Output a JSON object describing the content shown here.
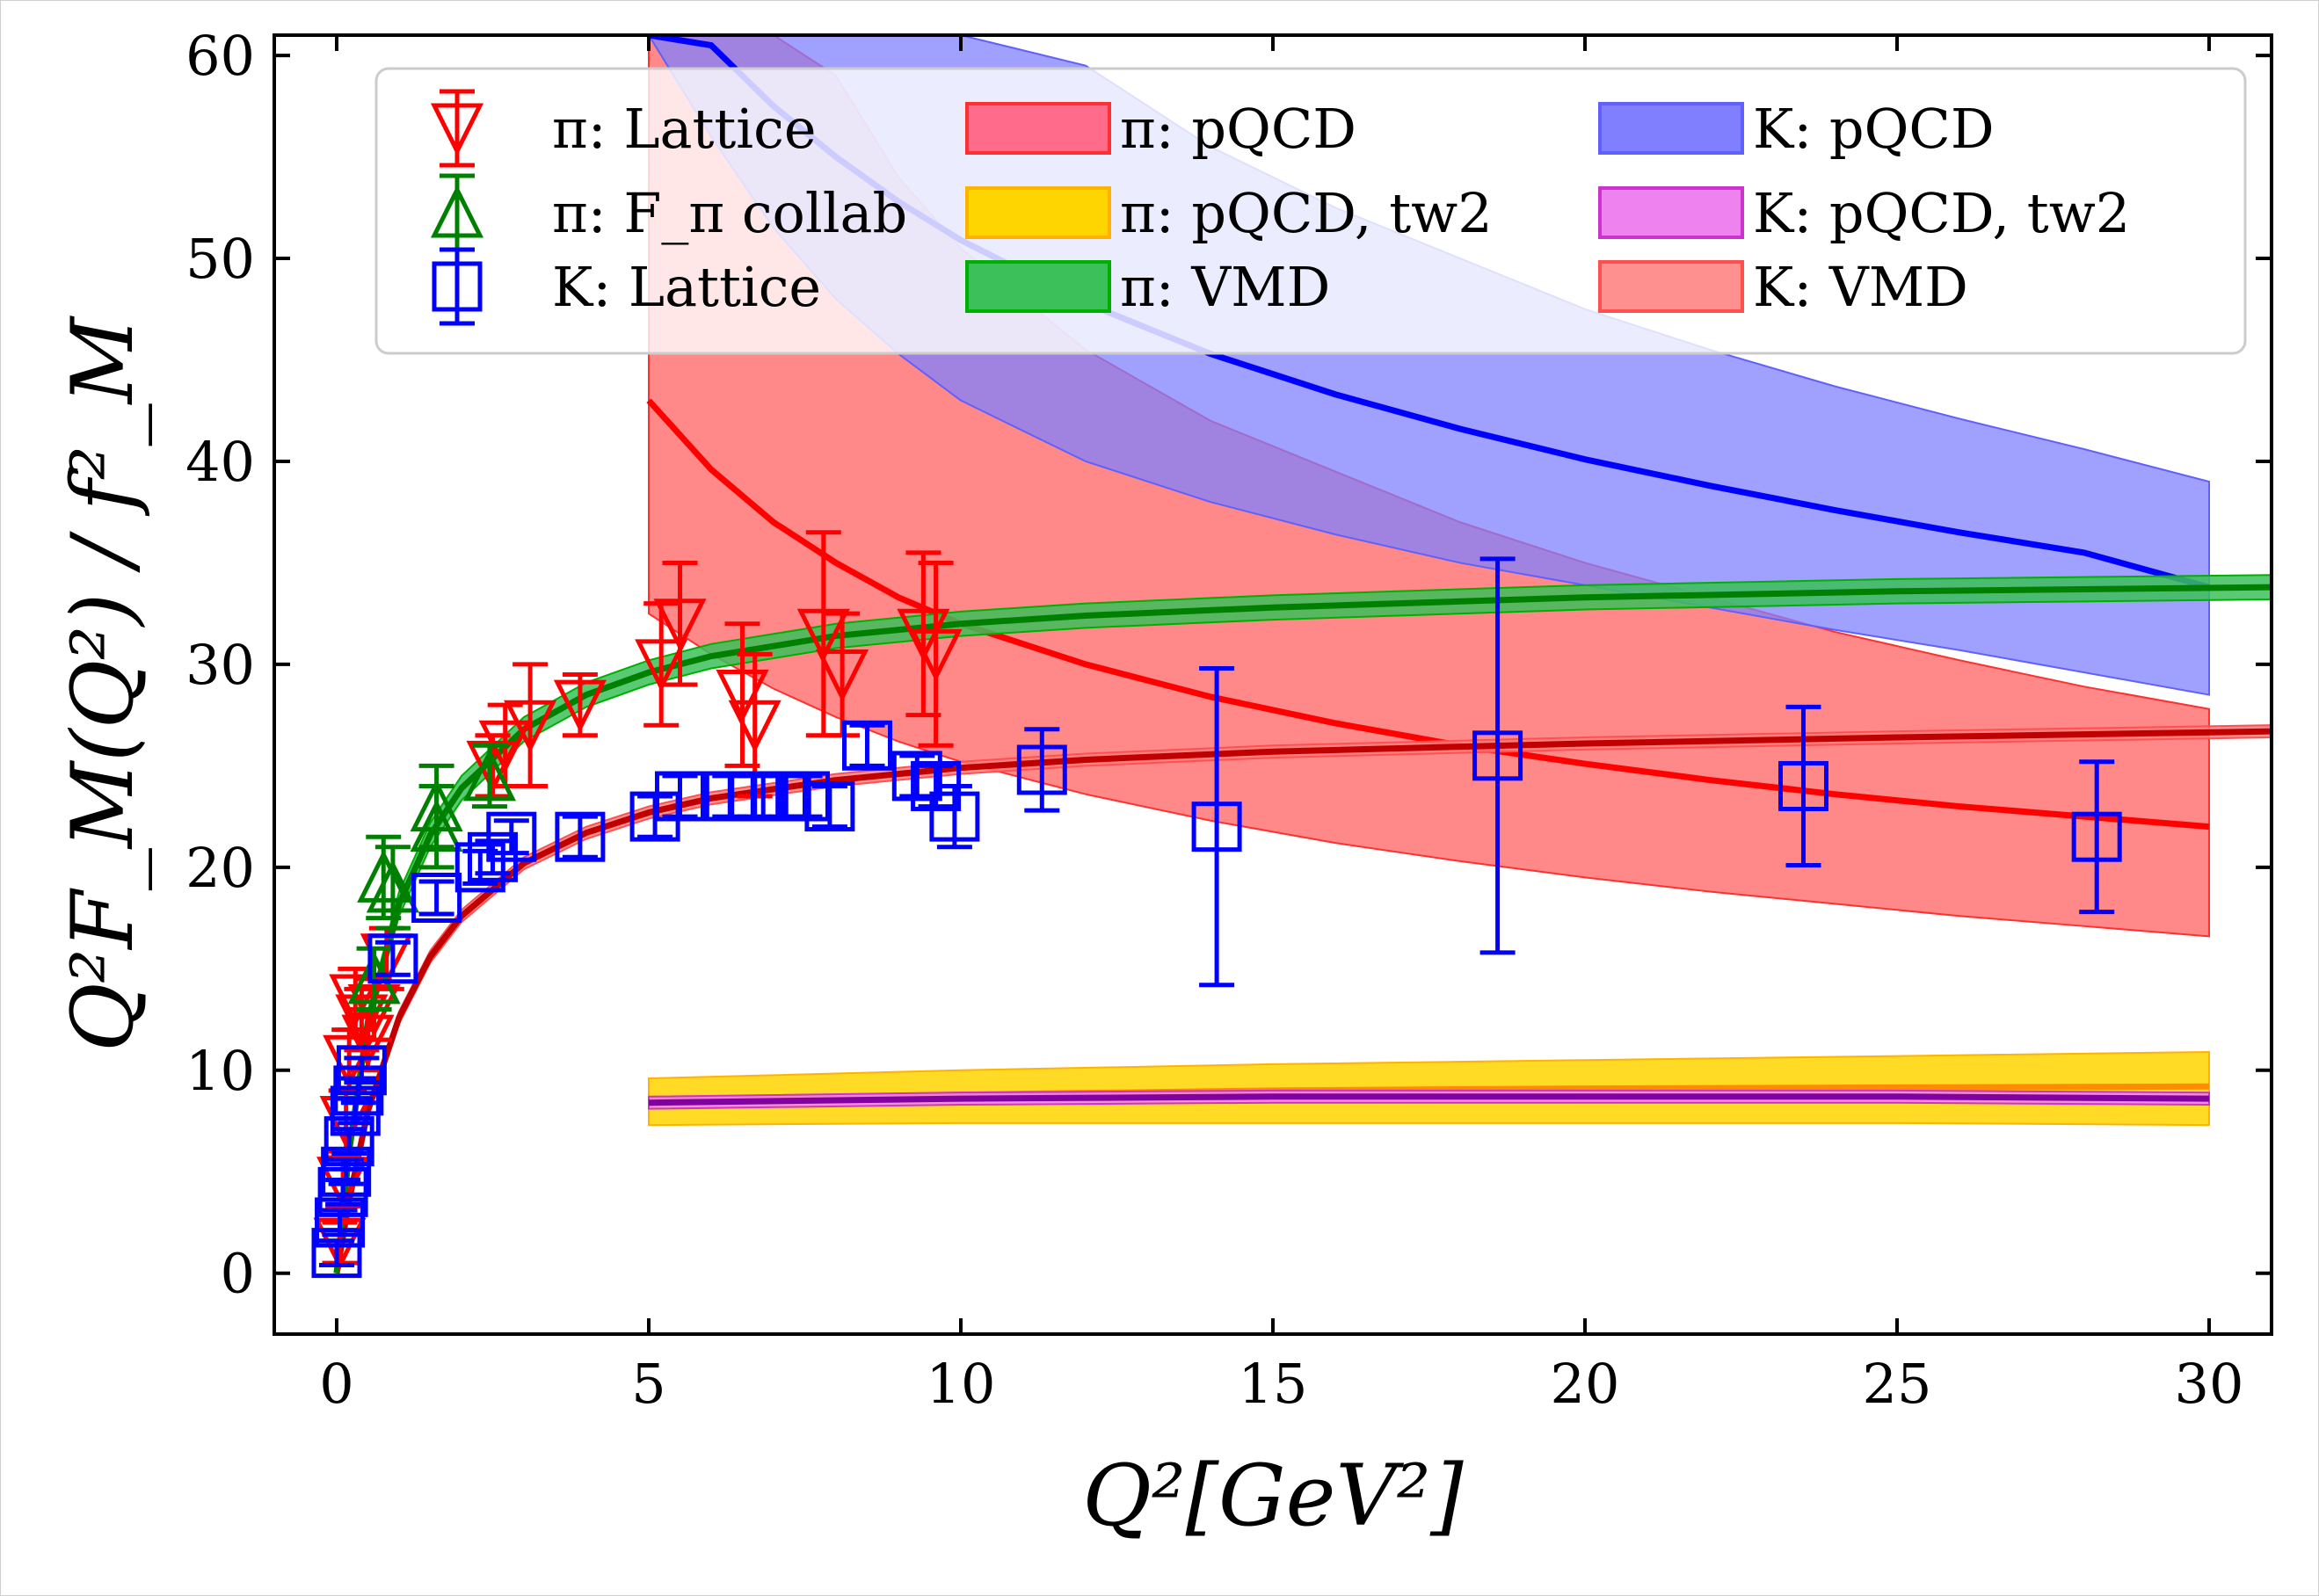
{
  "chart_data": {
    "type": "scatter",
    "xlim": [
      -1,
      31
    ],
    "ylim": [
      -3,
      61
    ],
    "x_ticks": [
      0,
      5,
      10,
      15,
      20,
      25,
      30
    ],
    "y_ticks": [
      0,
      10,
      20,
      30,
      40,
      50,
      60
    ],
    "xlabel": "Q²[GeV²]",
    "ylabel": "Q²F_M(Q²) / f²_M",
    "grid": false,
    "legend_position": "top",
    "series": [
      {
        "name": "π: Lattice",
        "kind": "errorbar",
        "marker": "triangle-down",
        "color": "#ff0000",
        "points": [
          {
            "x": 0.05,
            "y": 1.5,
            "err": 1.0
          },
          {
            "x": 0.1,
            "y": 4.5,
            "err": 1.2
          },
          {
            "x": 0.15,
            "y": 7.5,
            "err": 1.5
          },
          {
            "x": 0.2,
            "y": 10.5,
            "err": 1.5
          },
          {
            "x": 0.3,
            "y": 13.5,
            "err": 1.5
          },
          {
            "x": 0.4,
            "y": 12.5,
            "err": 1.5
          },
          {
            "x": 0.5,
            "y": 11.5,
            "err": 1.5
          },
          {
            "x": 0.6,
            "y": 13.0,
            "err": 1.5
          },
          {
            "x": 0.8,
            "y": 15.5,
            "err": 1.5
          },
          {
            "x": 2.5,
            "y": 25.0,
            "err": 1.5
          },
          {
            "x": 2.7,
            "y": 26.0,
            "err": 2.0
          },
          {
            "x": 3.1,
            "y": 27.0,
            "err": 3.0
          },
          {
            "x": 3.9,
            "y": 28.0,
            "err": 1.5
          },
          {
            "x": 5.2,
            "y": 30.0,
            "err": 3.0
          },
          {
            "x": 5.5,
            "y": 32.0,
            "err": 3.0
          },
          {
            "x": 6.5,
            "y": 28.5,
            "err": 3.5
          },
          {
            "x": 6.7,
            "y": 27.0,
            "err": 3.5
          },
          {
            "x": 7.8,
            "y": 31.5,
            "err": 5.0
          },
          {
            "x": 8.1,
            "y": 29.5,
            "err": 3.0
          },
          {
            "x": 9.4,
            "y": 31.5,
            "err": 4.0
          },
          {
            "x": 9.6,
            "y": 30.5,
            "err": 4.5
          }
        ]
      },
      {
        "name": "π: F_π collab",
        "kind": "errorbar",
        "marker": "triangle-up",
        "color": "#008000",
        "points": [
          {
            "x": 0.6,
            "y": 14.5,
            "err": 1.5
          },
          {
            "x": 0.75,
            "y": 19.5,
            "err": 2.0
          },
          {
            "x": 0.9,
            "y": 19.0,
            "err": 2.0
          },
          {
            "x": 1.6,
            "y": 22.0,
            "err": 2.0
          },
          {
            "x": 1.6,
            "y": 23.0,
            "err": 2.0
          },
          {
            "x": 2.45,
            "y": 24.5,
            "err": 1.5
          }
        ]
      },
      {
        "name": "K: Lattice",
        "kind": "errorbar",
        "marker": "square",
        "color": "#0000ff",
        "points": [
          {
            "x": 0.0,
            "y": 1.0,
            "err": 0.6
          },
          {
            "x": 0.05,
            "y": 2.5,
            "err": 0.6
          },
          {
            "x": 0.1,
            "y": 4.0,
            "err": 0.6
          },
          {
            "x": 0.15,
            "y": 5.0,
            "err": 0.6
          },
          {
            "x": 0.2,
            "y": 6.5,
            "err": 0.6
          },
          {
            "x": 0.3,
            "y": 8.0,
            "err": 0.6
          },
          {
            "x": 0.35,
            "y": 9.0,
            "err": 0.6
          },
          {
            "x": 0.4,
            "y": 10.0,
            "err": 0.6
          },
          {
            "x": 0.9,
            "y": 15.5,
            "err": 0.8
          },
          {
            "x": 1.6,
            "y": 18.5,
            "err": 0.8
          },
          {
            "x": 2.3,
            "y": 20.0,
            "err": 0.8
          },
          {
            "x": 2.5,
            "y": 20.5,
            "err": 0.8
          },
          {
            "x": 2.8,
            "y": 21.5,
            "err": 0.8
          },
          {
            "x": 3.9,
            "y": 21.5,
            "err": 1.0
          },
          {
            "x": 5.1,
            "y": 22.5,
            "err": 1.0
          },
          {
            "x": 5.5,
            "y": 23.5,
            "err": 1.0
          },
          {
            "x": 6.3,
            "y": 23.5,
            "err": 1.0
          },
          {
            "x": 6.7,
            "y": 23.5,
            "err": 1.0
          },
          {
            "x": 7.2,
            "y": 23.5,
            "err": 1.0
          },
          {
            "x": 7.5,
            "y": 23.5,
            "err": 1.0
          },
          {
            "x": 7.9,
            "y": 23.0,
            "err": 1.0
          },
          {
            "x": 8.5,
            "y": 26.0,
            "err": 1.0
          },
          {
            "x": 9.3,
            "y": 24.5,
            "err": 1.0
          },
          {
            "x": 9.6,
            "y": 24.0,
            "err": 1.0
          },
          {
            "x": 9.9,
            "y": 22.5,
            "err": 1.5
          },
          {
            "x": 11.3,
            "y": 24.8,
            "err": 2.0
          },
          {
            "x": 14.1,
            "y": 22.0,
            "err": 7.8
          },
          {
            "x": 18.6,
            "y": 25.5,
            "err": 9.7
          },
          {
            "x": 23.5,
            "y": 24.0,
            "err": 3.9
          },
          {
            "x": 28.2,
            "y": 21.5,
            "err": 3.7
          }
        ]
      }
    ],
    "bands": [
      {
        "name": "π: pQCD",
        "fill": "#ff6b6b",
        "edge": "#ff3030",
        "line": "#ff0000",
        "x": [
          5,
          6,
          7,
          8,
          9,
          10,
          12,
          14,
          16,
          18,
          20,
          22,
          24,
          26,
          28,
          30
        ],
        "center": [
          43.0,
          39.6,
          37.0,
          35.0,
          33.3,
          32.0,
          30.0,
          28.4,
          27.1,
          26.0,
          25.1,
          24.3,
          23.6,
          23.0,
          22.5,
          22.0
        ],
        "upper": [
          61,
          61,
          61,
          59,
          54,
          50.5,
          45.5,
          42.0,
          39.5,
          37.0,
          35.0,
          33.3,
          31.6,
          30.2,
          28.9,
          27.8
        ],
        "lower": [
          32.5,
          30.5,
          28.8,
          27.4,
          26.2,
          25.2,
          23.6,
          22.3,
          21.2,
          20.3,
          19.5,
          18.8,
          18.2,
          17.6,
          17.1,
          16.6
        ]
      },
      {
        "name": "π: pQCD, tw2",
        "fill": "#ffd500",
        "edge": "#ffb300",
        "line": "#ff8c00",
        "x": [
          5,
          10,
          15,
          20,
          25,
          30
        ],
        "center": [
          8.5,
          8.8,
          9.0,
          9.1,
          9.15,
          9.2
        ],
        "upper": [
          9.6,
          10.0,
          10.3,
          10.5,
          10.7,
          10.9
        ],
        "lower": [
          7.3,
          7.4,
          7.4,
          7.4,
          7.4,
          7.3
        ]
      },
      {
        "name": "π: VMD",
        "fill": "#3cc05a",
        "edge": "#00b000",
        "line": "#008000",
        "x": [
          0,
          0.2,
          0.5,
          1,
          1.5,
          2,
          3,
          4,
          5,
          6,
          8,
          10,
          12,
          15,
          20,
          25,
          31
        ],
        "center": [
          0.0,
          6.0,
          12.4,
          18.2,
          21.6,
          23.9,
          26.8,
          28.5,
          29.6,
          30.4,
          31.4,
          32.0,
          32.4,
          32.8,
          33.3,
          33.6,
          33.8
        ],
        "upper": [
          0.2,
          6.4,
          12.9,
          18.8,
          22.2,
          24.5,
          27.4,
          29.1,
          30.2,
          31.0,
          32.0,
          32.6,
          33.0,
          33.4,
          33.9,
          34.2,
          34.4
        ],
        "lower": [
          0.0,
          5.6,
          11.9,
          17.6,
          21.0,
          23.3,
          26.2,
          27.9,
          29.0,
          29.8,
          30.8,
          31.4,
          31.8,
          32.2,
          32.7,
          33.0,
          33.2
        ]
      },
      {
        "name": "K: pQCD",
        "fill": "#8080ff",
        "edge": "#6060ff",
        "line": "#0000ff",
        "x": [
          5,
          6,
          7,
          8,
          9,
          10,
          12,
          14,
          16,
          18,
          20,
          22,
          24,
          26,
          28,
          30
        ],
        "center": [
          61,
          60.5,
          57.5,
          55.0,
          52.8,
          50.9,
          47.8,
          45.3,
          43.3,
          41.6,
          40.1,
          38.8,
          37.6,
          36.5,
          35.5,
          33.8
        ],
        "upper": [
          61,
          61,
          61,
          61,
          61,
          61,
          59.5,
          55.5,
          52.5,
          50.0,
          47.5,
          45.5,
          43.7,
          42.1,
          40.6,
          39.0
        ],
        "lower": [
          61,
          56.0,
          51.5,
          48.0,
          45.3,
          43.0,
          40.0,
          38.0,
          36.4,
          35.0,
          33.9,
          32.8,
          31.7,
          30.7,
          29.6,
          28.5
        ]
      },
      {
        "name": "K: pQCD, tw2",
        "fill": "#ee82ee",
        "edge": "#cc33cc",
        "line": "#8000a0",
        "x": [
          5,
          10,
          15,
          20,
          25,
          30
        ],
        "center": [
          8.4,
          8.6,
          8.7,
          8.7,
          8.7,
          8.6
        ],
        "upper": [
          8.7,
          8.9,
          9.0,
          9.0,
          9.0,
          8.9
        ],
        "lower": [
          8.1,
          8.3,
          8.4,
          8.4,
          8.4,
          8.3
        ]
      },
      {
        "name": "K: VMD",
        "fill": "#ff7f7f",
        "edge": "#ff5050",
        "line": "#c00000",
        "x": [
          0,
          0.2,
          0.5,
          1,
          1.5,
          2,
          3,
          4,
          5,
          6,
          8,
          10,
          12,
          15,
          20,
          25,
          31
        ],
        "center": [
          0.0,
          3.6,
          8.0,
          12.6,
          15.6,
          17.6,
          20.2,
          21.7,
          22.7,
          23.4,
          24.3,
          24.9,
          25.3,
          25.7,
          26.1,
          26.4,
          26.7
        ],
        "upper": [
          0.1,
          3.8,
          8.3,
          12.9,
          15.9,
          17.9,
          20.5,
          22.0,
          23.0,
          23.7,
          24.6,
          25.2,
          25.6,
          26.0,
          26.4,
          26.7,
          27.0
        ],
        "lower": [
          0.0,
          3.4,
          7.7,
          12.3,
          15.3,
          17.3,
          19.9,
          21.4,
          22.4,
          23.1,
          24.0,
          24.6,
          25.0,
          25.4,
          25.8,
          26.1,
          26.4
        ]
      }
    ],
    "legend": {
      "entries": [
        {
          "label": "π: Lattice",
          "kind": "marker",
          "marker": "triangle-down",
          "color": "#ff0000"
        },
        {
          "label": "π: F_π collab",
          "kind": "marker",
          "marker": "triangle-up",
          "color": "#008000"
        },
        {
          "label": "K: Lattice",
          "kind": "marker",
          "marker": "square",
          "color": "#0000ff"
        },
        {
          "label": "π: pQCD",
          "kind": "patch",
          "fill": "#ff6b8a",
          "edge": "#ff3030"
        },
        {
          "label": "π: pQCD, tw2",
          "kind": "patch",
          "fill": "#ffd500",
          "edge": "#ffb300"
        },
        {
          "label": "π: VMD",
          "kind": "patch",
          "fill": "#3cc05a",
          "edge": "#00b000"
        },
        {
          "label": "K: pQCD",
          "kind": "patch",
          "fill": "#8080ff",
          "edge": "#6060ff"
        },
        {
          "label": "K: pQCD, tw2",
          "kind": "patch",
          "fill": "#ee82ee",
          "edge": "#cc33cc"
        },
        {
          "label": "K: VMD",
          "kind": "patch",
          "fill": "#ff9090",
          "edge": "#ff5050"
        }
      ]
    }
  }
}
